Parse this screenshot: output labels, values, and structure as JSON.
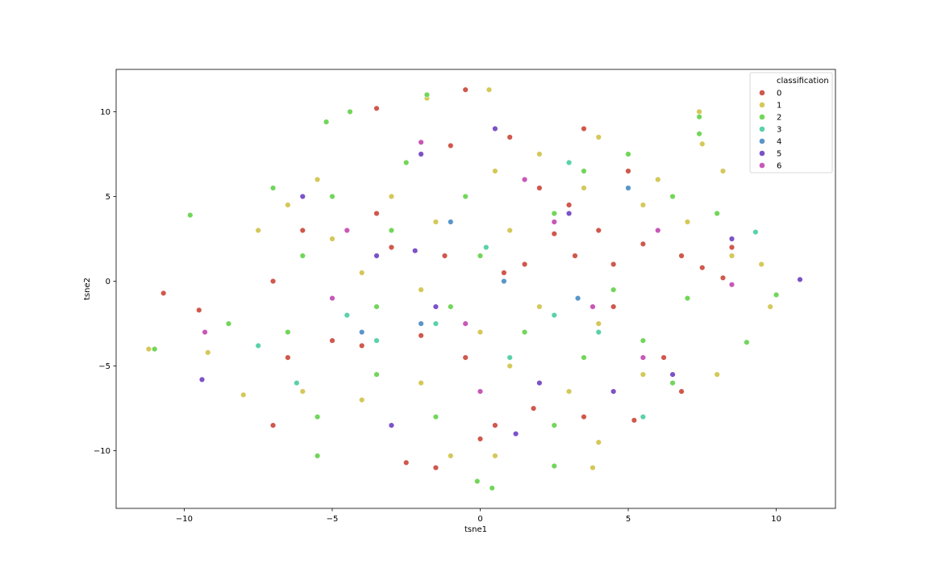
{
  "chart_data": {
    "type": "scatter",
    "title": "",
    "xlabel": "tsne1",
    "ylabel": "tsne2",
    "xlim": [
      -12.3,
      12.0
    ],
    "ylim": [
      -13.4,
      12.5
    ],
    "xticks": [
      -10,
      -5,
      0,
      5,
      10
    ],
    "yticks": [
      -10,
      -5,
      0,
      5,
      10
    ],
    "xtick_labels": [
      "−10",
      "−5",
      "0",
      "5",
      "10"
    ],
    "ytick_labels": [
      "−10",
      "−5",
      "0",
      "5",
      "10"
    ],
    "grid": false,
    "legend": {
      "title": "classification",
      "placement": "top-right",
      "entries": [
        {
          "label": "0",
          "color": "#d0584c"
        },
        {
          "label": "1",
          "color": "#d4c85a"
        },
        {
          "label": "2",
          "color": "#72d65a"
        },
        {
          "label": "3",
          "color": "#5ad2a8"
        },
        {
          "label": "4",
          "color": "#5a96c8"
        },
        {
          "label": "5",
          "color": "#7c52c8"
        },
        {
          "label": "6",
          "color": "#c858b8"
        }
      ]
    },
    "series": [
      {
        "name": "0",
        "color": "#d0584c",
        "points": [
          [
            2.5,
            2.8
          ],
          [
            3.2,
            1.5
          ],
          [
            4.5,
            1.0
          ],
          [
            5.5,
            2.2
          ],
          [
            6.8,
            1.5
          ],
          [
            7.5,
            0.8
          ],
          [
            8.2,
            0.2
          ],
          [
            3.0,
            4.5
          ],
          [
            1.5,
            1.0
          ],
          [
            0.8,
            0.5
          ],
          [
            4.0,
            3.0
          ],
          [
            2.0,
            5.5
          ],
          [
            -1.0,
            8.0
          ],
          [
            -3.5,
            4.0
          ],
          [
            -6.0,
            3.0
          ],
          [
            -7.0,
            0.0
          ],
          [
            -5.0,
            -3.5
          ],
          [
            -4.0,
            -3.8
          ],
          [
            -2.0,
            -3.2
          ],
          [
            -0.5,
            -4.5
          ],
          [
            0.5,
            -8.5
          ],
          [
            1.8,
            -7.5
          ],
          [
            3.5,
            -8.0
          ],
          [
            5.2,
            -8.2
          ],
          [
            -2.5,
            -10.7
          ],
          [
            -1.5,
            -11.0
          ],
          [
            -9.5,
            -1.7
          ],
          [
            -10.7,
            -0.7
          ],
          [
            -3.5,
            10.2
          ],
          [
            -0.5,
            11.3
          ],
          [
            6.2,
            -4.5
          ],
          [
            6.8,
            -6.5
          ],
          [
            4.5,
            -1.5
          ],
          [
            -6.5,
            -4.5
          ],
          [
            -7.0,
            -8.5
          ],
          [
            -1.2,
            1.5
          ],
          [
            -3.0,
            2.0
          ],
          [
            1.0,
            8.5
          ],
          [
            3.5,
            9.0
          ],
          [
            5.0,
            6.5
          ],
          [
            8.5,
            2.0
          ],
          [
            0.0,
            -9.3
          ]
        ]
      },
      {
        "name": "1",
        "color": "#d4c85a",
        "points": [
          [
            -5.5,
            6.0
          ],
          [
            -3.0,
            5.0
          ],
          [
            -1.5,
            3.5
          ],
          [
            0.5,
            6.5
          ],
          [
            2.0,
            7.5
          ],
          [
            4.0,
            8.5
          ],
          [
            5.5,
            4.5
          ],
          [
            7.0,
            3.5
          ],
          [
            8.5,
            1.5
          ],
          [
            9.5,
            1.0
          ],
          [
            -6.5,
            4.5
          ],
          [
            -7.5,
            3.0
          ],
          [
            -4.0,
            0.5
          ],
          [
            -2.0,
            -0.5
          ],
          [
            0.0,
            -3.0
          ],
          [
            2.0,
            -1.5
          ],
          [
            4.0,
            -2.5
          ],
          [
            5.5,
            -5.5
          ],
          [
            3.0,
            -6.5
          ],
          [
            1.0,
            -5.0
          ],
          [
            -2.0,
            -6.0
          ],
          [
            -4.0,
            -7.0
          ],
          [
            -6.0,
            -6.5
          ],
          [
            -8.0,
            -6.7
          ],
          [
            7.4,
            10.0
          ],
          [
            7.5,
            8.1
          ],
          [
            8.2,
            6.5
          ],
          [
            -1.8,
            10.8
          ],
          [
            0.3,
            11.3
          ],
          [
            -11.2,
            -4.0
          ],
          [
            -9.2,
            -4.2
          ],
          [
            -1.0,
            -10.3
          ],
          [
            0.5,
            -10.3
          ],
          [
            4.0,
            -9.5
          ],
          [
            3.8,
            -11.0
          ],
          [
            8.0,
            -5.5
          ],
          [
            9.8,
            -1.5
          ],
          [
            -5.0,
            2.5
          ],
          [
            1.0,
            3.0
          ],
          [
            3.5,
            5.5
          ],
          [
            6.0,
            6.0
          ]
        ]
      },
      {
        "name": "2",
        "color": "#72d65a",
        "points": [
          [
            -5.0,
            5.0
          ],
          [
            -2.5,
            7.0
          ],
          [
            -0.5,
            5.0
          ],
          [
            1.5,
            6.0
          ],
          [
            3.5,
            6.5
          ],
          [
            5.0,
            7.5
          ],
          [
            6.5,
            5.0
          ],
          [
            8.0,
            4.0
          ],
          [
            -7.0,
            5.5
          ],
          [
            -6.0,
            1.5
          ],
          [
            -3.5,
            -1.5
          ],
          [
            -1.0,
            -1.5
          ],
          [
            1.5,
            -3.0
          ],
          [
            3.5,
            -4.5
          ],
          [
            5.5,
            -3.5
          ],
          [
            6.5,
            -6.0
          ],
          [
            2.5,
            -8.5
          ],
          [
            -1.5,
            -8.0
          ],
          [
            -3.5,
            -5.5
          ],
          [
            -5.5,
            -8.0
          ],
          [
            -9.8,
            3.9
          ],
          [
            -5.2,
            9.4
          ],
          [
            7.4,
            9.7
          ],
          [
            7.4,
            8.7
          ],
          [
            -0.1,
            -11.8
          ],
          [
            0.4,
            -12.2
          ],
          [
            -11.0,
            -4.0
          ],
          [
            -5.5,
            -10.3
          ],
          [
            2.5,
            -10.9
          ],
          [
            -1.8,
            11.0
          ],
          [
            -4.4,
            10.0
          ],
          [
            9.0,
            -3.6
          ],
          [
            10.0,
            -0.8
          ],
          [
            -3.0,
            3.0
          ],
          [
            0.0,
            1.5
          ],
          [
            2.5,
            4.0
          ],
          [
            -8.5,
            -2.5
          ],
          [
            -6.5,
            -3.0
          ],
          [
            4.5,
            -0.5
          ],
          [
            7.0,
            -1.0
          ]
        ]
      },
      {
        "name": "3",
        "color": "#5ad2a8",
        "points": [
          [
            0.2,
            2.0
          ],
          [
            -1.5,
            -2.5
          ],
          [
            2.5,
            -2.0
          ],
          [
            -4.5,
            -2.0
          ],
          [
            4.0,
            -3.0
          ],
          [
            9.3,
            2.9
          ],
          [
            -6.2,
            -6.0
          ],
          [
            5.5,
            -8.0
          ],
          [
            -3.5,
            -3.5
          ],
          [
            1.0,
            -4.5
          ],
          [
            -7.5,
            -3.8
          ],
          [
            3.0,
            7.0
          ]
        ]
      },
      {
        "name": "4",
        "color": "#5a96c8",
        "points": [
          [
            -1.0,
            3.5
          ],
          [
            0.8,
            0.0
          ],
          [
            3.3,
            -1.0
          ],
          [
            -4.0,
            -3.0
          ],
          [
            5.0,
            5.5
          ],
          [
            -2.0,
            -2.5
          ]
        ]
      },
      {
        "name": "5",
        "color": "#7c52c8",
        "points": [
          [
            -2.0,
            7.5
          ],
          [
            0.5,
            9.0
          ],
          [
            3.0,
            4.0
          ],
          [
            -3.5,
            1.5
          ],
          [
            -1.5,
            -1.5
          ],
          [
            2.0,
            -6.0
          ],
          [
            4.5,
            -6.5
          ],
          [
            -3.0,
            -8.5
          ],
          [
            -9.4,
            -5.8
          ],
          [
            10.8,
            0.1
          ],
          [
            -6.0,
            5.0
          ],
          [
            6.5,
            -5.5
          ],
          [
            8.5,
            2.5
          ],
          [
            -2.2,
            1.8
          ],
          [
            1.2,
            -9.0
          ]
        ]
      },
      {
        "name": "6",
        "color": "#c858b8",
        "points": [
          [
            -2.0,
            8.2
          ],
          [
            1.5,
            6.0
          ],
          [
            6.0,
            3.0
          ],
          [
            -4.5,
            3.0
          ],
          [
            -9.3,
            -3.0
          ],
          [
            3.8,
            -1.5
          ],
          [
            8.5,
            -0.2
          ],
          [
            -0.5,
            -2.5
          ],
          [
            2.5,
            3.5
          ],
          [
            5.5,
            -4.5
          ],
          [
            -5.0,
            -1.0
          ],
          [
            0.0,
            -6.5
          ]
        ]
      }
    ]
  }
}
